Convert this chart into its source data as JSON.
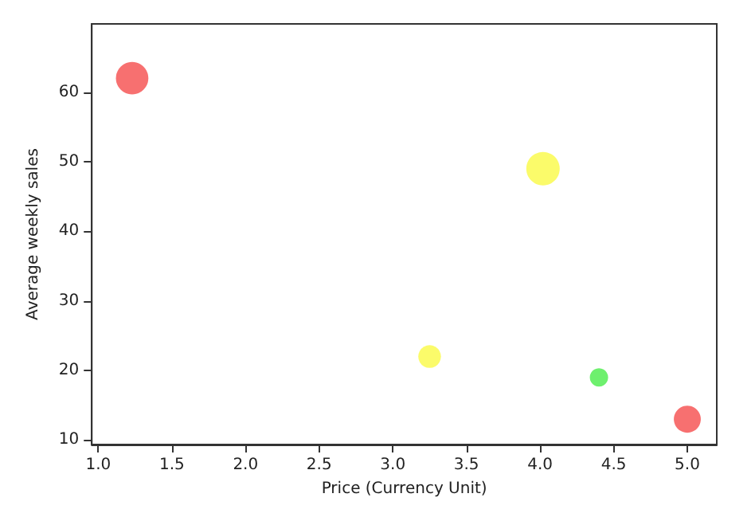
{
  "chart_data": {
    "type": "bubble",
    "xlabel": "Price (Currency Unit)",
    "ylabel": "Average weekly sales",
    "x": [
      1.23,
      4.02,
      3.25,
      4.4,
      5.0
    ],
    "values": [
      62,
      49,
      22,
      19,
      13
    ],
    "sizes": [
      0.94,
      1,
      0.46,
      0.3,
      0.65
    ],
    "colors": [
      "#f77070",
      "#fbfb6a",
      "#fbfb6a",
      "#6ef06e",
      "#f77070"
    ],
    "xlim": [
      0.956,
      5.2
    ],
    "xticks": [
      {
        "value": 1,
        "label": "1.0"
      },
      1.5,
      {
        "value": 2,
        "label": "2.0"
      },
      2.5,
      {
        "value": 3,
        "label": "3.0"
      },
      3.5,
      {
        "value": 4,
        "label": "4.0"
      },
      4.5,
      {
        "value": 5,
        "label": "5.0"
      }
    ],
    "ylim": [
      9.36,
      69.8
    ],
    "yticks": [
      10,
      20,
      30,
      40,
      50,
      60
    ],
    "grid": false
  }
}
